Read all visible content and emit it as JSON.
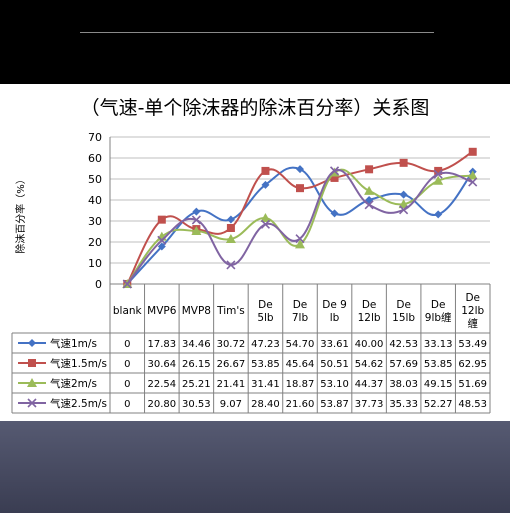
{
  "chart_data": {
    "type": "line",
    "title": "（气速-单个除沫器的除沫百分率）关系图",
    "ylabel": "除沫百分率（%）",
    "xlabel": "",
    "ylim": [
      0,
      70
    ],
    "yticks": [
      0,
      10,
      20,
      30,
      40,
      50,
      60,
      70
    ],
    "grid": true,
    "legend": "table-below",
    "categories": [
      "blank",
      "MVP6",
      "MVP8",
      "Tim's",
      "De 5lb",
      "De 7lb",
      "De 9 lb",
      "De 12lb",
      "De 15lb",
      "De 9lb缠",
      "De 12lb缠"
    ],
    "category_lines": [
      [
        "blank"
      ],
      [
        "MVP6"
      ],
      [
        "MVP8"
      ],
      [
        "Tim's"
      ],
      [
        "De",
        "5lb"
      ],
      [
        "De",
        "7lb"
      ],
      [
        "De 9",
        "lb"
      ],
      [
        "De",
        "12lb"
      ],
      [
        "De",
        "15lb"
      ],
      [
        "De",
        "9lb缠"
      ],
      [
        "De",
        "12lb",
        "缠"
      ]
    ],
    "series": [
      {
        "name": "气速1m/s",
        "color": "#4472c4",
        "marker": "diamond",
        "values": [
          0,
          17.83,
          34.46,
          30.72,
          47.23,
          54.7,
          33.61,
          40.0,
          42.53,
          33.13,
          53.49
        ]
      },
      {
        "name": "气速1.5m/s",
        "color": "#c0504d",
        "marker": "square",
        "values": [
          0,
          30.64,
          26.15,
          26.67,
          53.85,
          45.64,
          50.51,
          54.62,
          57.69,
          53.85,
          62.95
        ]
      },
      {
        "name": "气速2m/s",
        "color": "#9bbb59",
        "marker": "triangle",
        "values": [
          0,
          22.54,
          25.21,
          21.41,
          31.41,
          18.87,
          53.1,
          44.37,
          38.03,
          49.15,
          51.69
        ]
      },
      {
        "name": "气速2.5m/s",
        "color": "#8064a2",
        "marker": "x",
        "values": [
          0,
          20.8,
          30.53,
          9.07,
          28.4,
          21.6,
          53.87,
          37.73,
          35.33,
          52.27,
          48.53
        ]
      }
    ],
    "value_labels": [
      [
        "0",
        "17.83",
        "34.46",
        "30.72",
        "47.23",
        "54.70",
        "33.61",
        "40.00",
        "42.53",
        "33.13",
        "53.49"
      ],
      [
        "0",
        "30.64",
        "26.15",
        "26.67",
        "53.85",
        "45.64",
        "50.51",
        "54.62",
        "57.69",
        "53.85",
        "62.95"
      ],
      [
        "0",
        "22.54",
        "25.21",
        "21.41",
        "31.41",
        "18.87",
        "53.10",
        "44.37",
        "38.03",
        "49.15",
        "51.69"
      ],
      [
        "0",
        "20.80",
        "30.53",
        "9.07",
        "28.40",
        "21.60",
        "53.87",
        "37.73",
        "35.33",
        "52.27",
        "48.53"
      ]
    ]
  }
}
